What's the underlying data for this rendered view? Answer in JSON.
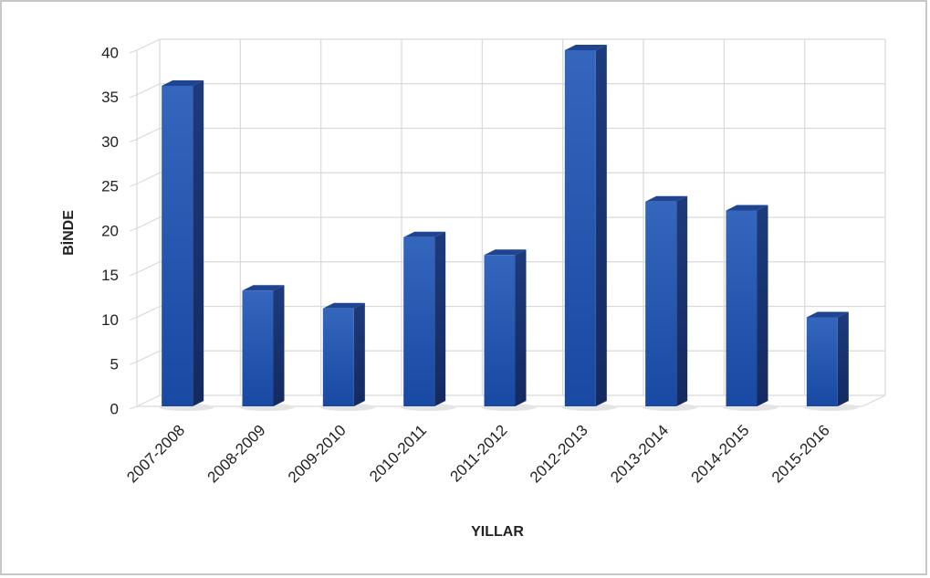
{
  "chart_data": {
    "type": "bar3d",
    "x_label": "YILLAR",
    "y_label": "BİNDE",
    "categories": [
      "2007-2008",
      "2008-2009",
      "2009-2010",
      "2010-2011",
      "2011-2012",
      "2012-2013",
      "2013-2014",
      "2014-2015",
      "2015-2016"
    ],
    "values": [
      36,
      13,
      11,
      19,
      17,
      40,
      23,
      22,
      10
    ],
    "color": "#2456b0",
    "ylim": [
      0,
      40
    ],
    "yticks": [
      0,
      5,
      10,
      15,
      20,
      25,
      30,
      35,
      40
    ],
    "grid": true
  }
}
